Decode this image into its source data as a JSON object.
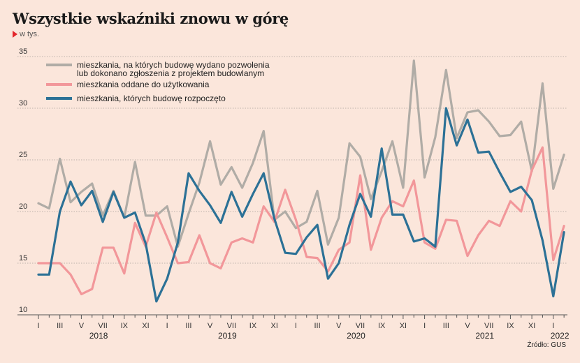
{
  "title": "Wszystkie wskaźniki znowu w górę",
  "unit": "w tys.",
  "source": "Źródło: GUS",
  "chart_data": {
    "type": "line",
    "ylim": [
      10,
      35
    ],
    "yticks": [
      10,
      15,
      20,
      25,
      30,
      35
    ],
    "month_ticks": [
      "I",
      "III",
      "V",
      "VII",
      "IX",
      "XI",
      "I",
      "III",
      "V",
      "VII",
      "IX",
      "XI",
      "I",
      "III",
      "V",
      "VII",
      "IX",
      "XI",
      "I",
      "III",
      "V",
      "VII",
      "IX",
      "XI",
      "I"
    ],
    "years": [
      {
        "label": "2018",
        "month_index": 6
      },
      {
        "label": "2019",
        "month_index": 18
      },
      {
        "label": "2020",
        "month_index": 30
      },
      {
        "label": "2021",
        "month_index": 42
      },
      {
        "label": "2022",
        "month_index": 49
      }
    ],
    "x_start": "2018-01",
    "legend": [
      [
        "mieszkania, na których budowę wydano pozwolenia",
        "lub dokonano zgłoszenia z projektem budowlanym"
      ],
      [
        "mieszkania oddane do użytkowania"
      ],
      [
        "mieszkania, których budowę rozpoczęto"
      ]
    ],
    "series": [
      {
        "color": "#b0aca6",
        "values": [
          20.8,
          20.3,
          25.1,
          20.9,
          21.9,
          22.7,
          19.6,
          22.0,
          19.4,
          24.8,
          19.6,
          19.6,
          20.5,
          16.6,
          19.8,
          22.8,
          26.8,
          22.6,
          24.3,
          22.3,
          24.7,
          27.8,
          19.2,
          20.0,
          18.4,
          19.0,
          22.0,
          16.8,
          19.4,
          26.6,
          25.3,
          21.2,
          23.9,
          26.8,
          22.3,
          34.6,
          23.3,
          27.2,
          33.7,
          27.1,
          29.6,
          29.8,
          28.7,
          27.3,
          27.4,
          28.7,
          23.9,
          32.4,
          22.2,
          25.5
        ]
      },
      {
        "color": "#f2979a",
        "values": [
          15.0,
          15.0,
          15.0,
          13.9,
          12.0,
          12.5,
          16.5,
          16.5,
          14.0,
          18.9,
          16.6,
          19.9,
          17.5,
          15.0,
          15.1,
          17.7,
          15.0,
          14.5,
          17.0,
          17.4,
          17.0,
          20.5,
          19.0,
          22.1,
          19.2,
          15.6,
          15.5,
          14.2,
          16.3,
          17.0,
          23.5,
          16.3,
          19.4,
          21.0,
          20.5,
          23.0,
          17.0,
          16.4,
          19.2,
          19.1,
          15.7,
          17.7,
          19.1,
          18.6,
          21.0,
          20.0,
          24.0,
          26.2,
          15.3,
          18.6
        ]
      },
      {
        "color": "#2c7196",
        "values": [
          13.9,
          13.9,
          20.0,
          22.9,
          20.6,
          22.0,
          19.0,
          21.9,
          19.4,
          19.9,
          16.9,
          11.3,
          13.5,
          17.0,
          23.7,
          22.0,
          20.6,
          18.9,
          21.9,
          19.5,
          21.7,
          23.7,
          19.3,
          16.0,
          15.9,
          17.5,
          18.7,
          13.5,
          15.0,
          18.7,
          21.7,
          19.5,
          26.1,
          19.7,
          19.7,
          17.1,
          17.4,
          16.6,
          30.0,
          26.4,
          28.9,
          25.7,
          25.8,
          23.8,
          21.9,
          22.4,
          21.1,
          17.2,
          11.8,
          18.0
        ]
      }
    ]
  }
}
